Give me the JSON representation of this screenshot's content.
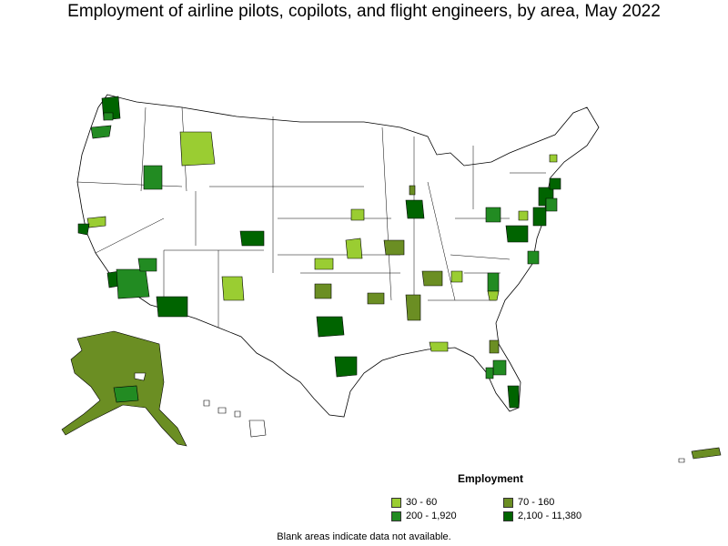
{
  "title": "Employment of airline pilots, copilots, and flight engineers, by area, May 2022",
  "legend": {
    "title": "Employment",
    "items": [
      {
        "label": "30 - 60",
        "color": "#9ACD32"
      },
      {
        "label": "70 - 160",
        "color": "#6B8E23"
      },
      {
        "label": "200 - 1,920",
        "color": "#228B22"
      },
      {
        "label": "2,100 - 11,380",
        "color": "#006400"
      }
    ]
  },
  "note": "Blank areas indicate data not available.",
  "colors": {
    "border": "#000000",
    "blank": "#ffffff"
  }
}
